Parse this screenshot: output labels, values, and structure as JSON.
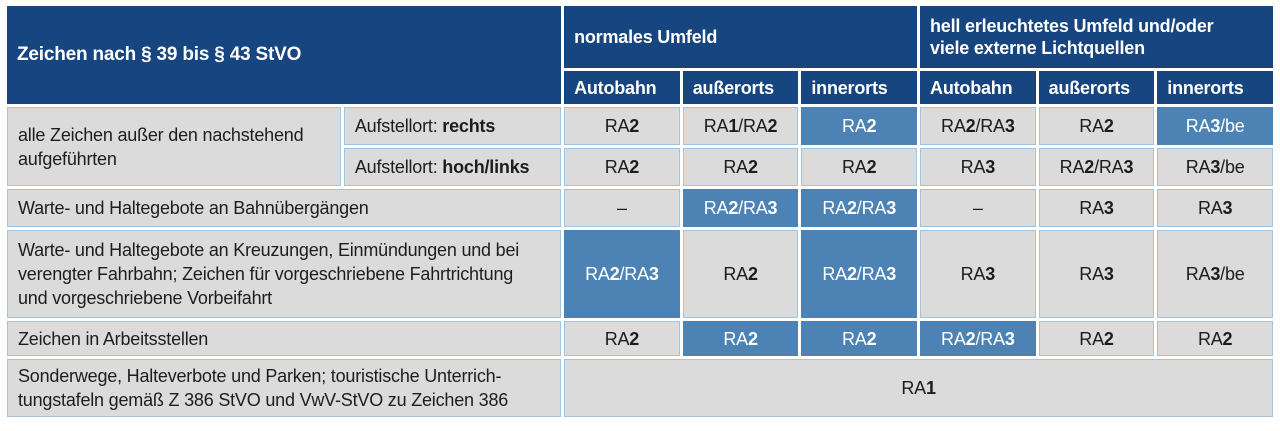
{
  "colors": {
    "header_bg": "#17457f",
    "header_text": "#ffffff",
    "cell_bg": "#dbdbdb",
    "cell_border": "#a6c3dc",
    "highlight_bg": "#4d82b4",
    "highlight_text": "#ffffff",
    "body_text": "#1d1d1b",
    "page_bg": "#ffffff"
  },
  "table": {
    "corner_header": "Zeichen nach § 39 bis § 43 StVO",
    "group_headers": [
      {
        "label": "normales Umfeld"
      },
      {
        "lines": [
          "hell erleuchtetes Umfeld und/oder",
          "viele externe Lichtquellen"
        ]
      }
    ],
    "col_headers": [
      "Autobahn",
      "außerorts",
      "innerorts",
      "Autobahn",
      "außerorts",
      "innerorts"
    ],
    "rows": [
      {
        "label_lines": [
          "alle Zeichen außer den nachstehend",
          "aufgeführten"
        ],
        "label_rowspan": 2,
        "sublabel": {
          "prefix": "Aufstellort: ",
          "bold": "rechts"
        },
        "cells": [
          {
            "text": "RA2",
            "highlight": false
          },
          {
            "text": "RA1/RA2",
            "highlight": false
          },
          {
            "text": "RA2",
            "highlight": true
          },
          {
            "text": "RA2/RA3",
            "highlight": false
          },
          {
            "text": "RA2",
            "highlight": false
          },
          {
            "text": "RA3/be",
            "highlight": true
          }
        ]
      },
      {
        "sublabel": {
          "prefix": "Aufstellort: ",
          "bold": "hoch/links"
        },
        "cells": [
          {
            "text": "RA2",
            "highlight": false
          },
          {
            "text": "RA2",
            "highlight": false
          },
          {
            "text": "RA2",
            "highlight": false
          },
          {
            "text": "RA3",
            "highlight": false
          },
          {
            "text": "RA2/RA3",
            "highlight": false
          },
          {
            "text": "RA3/be",
            "highlight": false
          }
        ]
      },
      {
        "label_lines": [
          "Warte- und Haltegebote an Bahnübergängen"
        ],
        "label_colspan": 2,
        "cells": [
          {
            "text": "–",
            "highlight": false
          },
          {
            "text": "RA2/RA3",
            "highlight": true
          },
          {
            "text": "RA2/RA3",
            "highlight": true
          },
          {
            "text": "–",
            "highlight": false
          },
          {
            "text": "RA3",
            "highlight": false
          },
          {
            "text": "RA3",
            "highlight": false
          }
        ]
      },
      {
        "label_lines": [
          "Warte- und Haltegebote an Kreuzungen, Einmündungen und bei",
          "verengter Fahrbahn; Zeichen für vorgeschriebene Fahrtrichtung",
          "und vorgeschriebene Vorbeifahrt"
        ],
        "label_colspan": 2,
        "cells": [
          {
            "text": "RA2/RA3",
            "highlight": true
          },
          {
            "text": "RA2",
            "highlight": false
          },
          {
            "text": "RA2/RA3",
            "highlight": true
          },
          {
            "text": "RA3",
            "highlight": false
          },
          {
            "text": "RA3",
            "highlight": false
          },
          {
            "text": "RA3/be",
            "highlight": false
          }
        ]
      },
      {
        "label_lines": [
          "Zeichen in Arbeitsstellen"
        ],
        "label_colspan": 2,
        "cells": [
          {
            "text": "RA2",
            "highlight": false
          },
          {
            "text": "RA2",
            "highlight": true
          },
          {
            "text": "RA2",
            "highlight": true
          },
          {
            "text": "RA2/RA3",
            "highlight": true
          },
          {
            "text": "RA2",
            "highlight": false
          },
          {
            "text": "RA2",
            "highlight": false
          }
        ]
      },
      {
        "label_lines": [
          "Sonderwege, Halteverbote und Parken; touristische Unterrich-",
          "tungstafeln gemäß Z 386 StVO und VwV-StVO zu Zeichen 386"
        ],
        "label_colspan": 2,
        "cells": [
          {
            "text": "RA1",
            "highlight": false,
            "colspan": 6
          }
        ]
      }
    ]
  }
}
